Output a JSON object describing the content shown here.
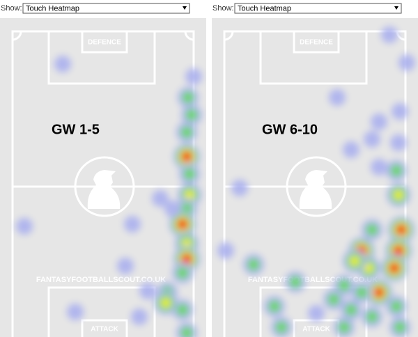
{
  "panels": [
    {
      "show_label": "Show:",
      "select": "Touch Heatmap",
      "overlay": "GW 1-5",
      "defence": "DEFENCE",
      "attack": "ATTACK",
      "watermark": "FANTASYFOOTBALLSCOUT.CO.UK"
    },
    {
      "show_label": "Show:",
      "select": "Touch Heatmap",
      "overlay": "GW 6-10",
      "defence": "DEFENCE",
      "attack": "ATTACK",
      "watermark": "FANTASYFOOTBALLSCOUT.CO.UK"
    }
  ]
}
